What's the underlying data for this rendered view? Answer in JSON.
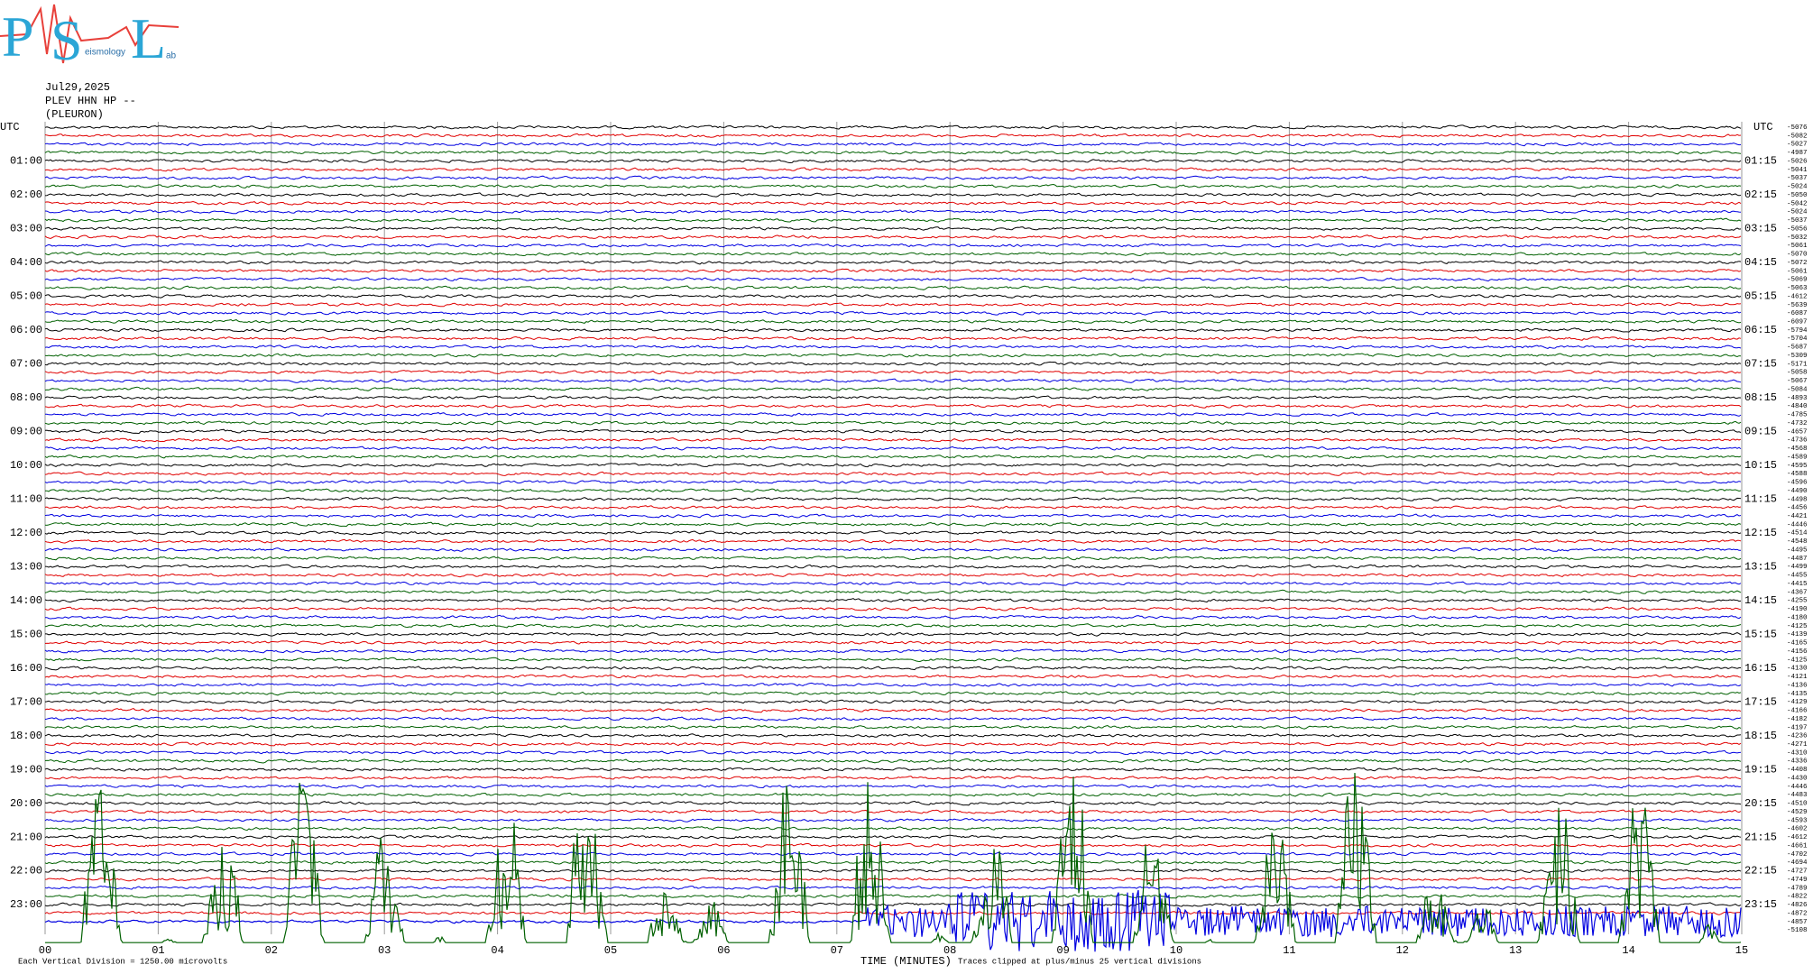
{
  "logo": {
    "letters": [
      "P",
      "S",
      "L"
    ],
    "words": [
      "eismology",
      "ab"
    ]
  },
  "header": {
    "date": "Jul29,2025",
    "station": "PLEV HHN HP --",
    "location": "(PLEURON)"
  },
  "left_axis": {
    "title": "UTC",
    "labels": [
      "01:00",
      "02:00",
      "03:00",
      "04:00",
      "05:00",
      "06:00",
      "07:00",
      "08:00",
      "09:00",
      "10:00",
      "11:00",
      "12:00",
      "13:00",
      "14:00",
      "15:00",
      "16:00",
      "17:00",
      "18:00",
      "19:00",
      "20:00",
      "21:00",
      "22:00",
      "23:00"
    ]
  },
  "right_axis": {
    "title": "UTC",
    "labels": [
      "01:15",
      "02:15",
      "03:15",
      "04:15",
      "05:15",
      "06:15",
      "07:15",
      "08:15",
      "09:15",
      "10:15",
      "11:15",
      "12:15",
      "13:15",
      "14:15",
      "15:15",
      "16:15",
      "17:15",
      "18:15",
      "19:15",
      "20:15",
      "21:15",
      "22:15",
      "23:15"
    ]
  },
  "trace_offsets": [
    -5076,
    -5082,
    -5027,
    -4987,
    -5026,
    -5041,
    -5037,
    -5024,
    -5050,
    -5042,
    -5024,
    -5037,
    -5056,
    -5032,
    -5061,
    -5070,
    -5072,
    -5061,
    -5069,
    -5063,
    -4612,
    -5639,
    -6087,
    -6097,
    -5794,
    -5704,
    -5687,
    -5309,
    -5171,
    -5058,
    -5067,
    -5084,
    -4893,
    -4840,
    -4785,
    -4732,
    -4657,
    -4736,
    -4568,
    -4589,
    -4595,
    -4588,
    -4596,
    -4490,
    -4498,
    -4456,
    -4421,
    -4446,
    -4514,
    -4548,
    -4495,
    -4487,
    -4499,
    -4455,
    -4415,
    -4367,
    -4255,
    -4190,
    -4180,
    -4125,
    -4139,
    -4165,
    -4156,
    -4125,
    -4130,
    -4121,
    -4136,
    -4135,
    -4129,
    -4166,
    -4182,
    -4197,
    -4236,
    -4271,
    -4310,
    -4336,
    -4408,
    -4430,
    -4446,
    -4483,
    -4510,
    -4529,
    -4593,
    -4602,
    -4612,
    -4661,
    -4702,
    -4694,
    -4727,
    -4749,
    -4789,
    -4822,
    -4826,
    -4872,
    -4857,
    -5108
  ],
  "x_axis": {
    "labels": [
      "00",
      "01",
      "02",
      "03",
      "04",
      "05",
      "06",
      "07",
      "08",
      "09",
      "10",
      "11",
      "12",
      "13",
      "14",
      "15"
    ],
    "title": "TIME (MINUTES)"
  },
  "footer": {
    "scale": "Each Vertical Division = 1250.00 microvolts",
    "clip": "Traces clipped at plus/minus 25 vertical divisions"
  }
}
